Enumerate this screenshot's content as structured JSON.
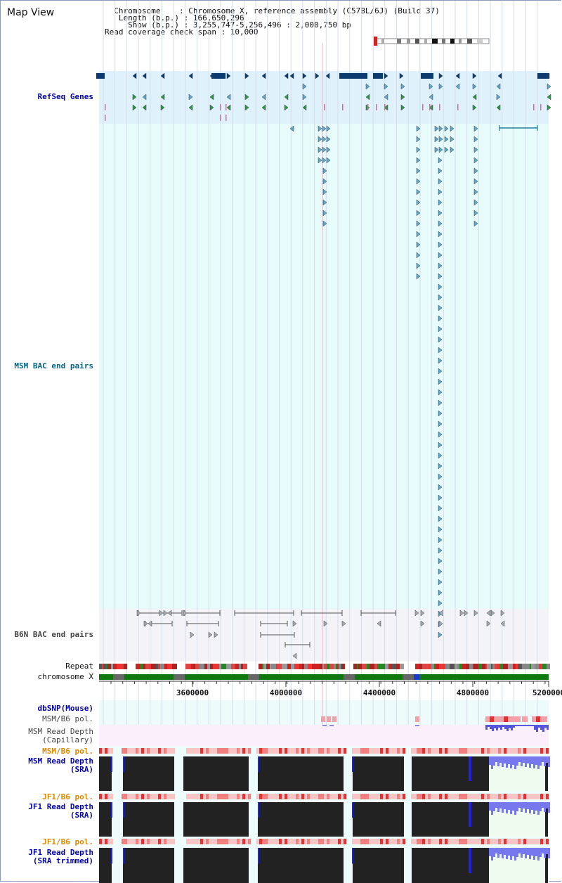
{
  "header": {
    "title": "Map View",
    "info_lines": [
      "  Chromosome    : Chromosome X, reference assembly (C57BL/6J) (Build 37)",
      "   Length (b.p.) : 166,650,296",
      "     Show (b.p.) : 3,255,747-5,256,496 : 2,000,750 bp",
      "Read coverage check span : 10,000"
    ]
  },
  "tracks": {
    "refseq": "RefSeq Genes",
    "msm_bac": "MSM BAC end pairs",
    "b6n_bac": "B6N BAC end pairs",
    "repeat": "Repeat",
    "chromosome": "chromosome X",
    "dbsnp": "dbSNP(Mouse)",
    "msm_b6_pol_1": "MSM/B6 pol.",
    "msm_read_depth_cap": "MSM Read Depth\n(Capillary)",
    "msm_b6_pol_2": "MSM/B6 pol.",
    "msm_read_depth_sra": "MSM Read Depth\n(SRA)",
    "jf1_b6_pol_1": "JF1/B6 pol.",
    "jf1_read_depth_sra": "JF1 Read Depth\n(SRA)",
    "jf1_b6_pol_2": "JF1/B6 pol.",
    "jf1_read_depth_trimmed": "JF1 Read Depth\n(SRA trimmed)"
  },
  "axis": {
    "ticks": [
      "3600000",
      "4000000",
      "4400000",
      "4800000",
      "5200000"
    ]
  },
  "colors": {
    "refseq_bg": "#dff2fb",
    "bac_bg": "#e8fbfb",
    "b6n_bg": "#f4f4f8",
    "gene_dark": "#0b3a6e",
    "gene_mid": "#5fa9c9",
    "gene_green": "#2f9a3c",
    "pink": "#f06090",
    "read_depth_fill": "#222222",
    "coverage_blue": "#7777ee",
    "label_blue": "#0000aa",
    "label_orange": "#e08800",
    "label_teal": "#006688"
  }
}
